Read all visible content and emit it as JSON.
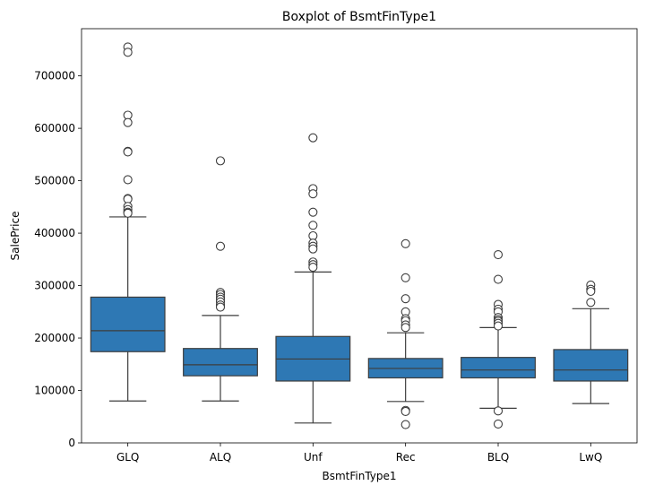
{
  "chart_data": {
    "type": "box",
    "title": "Boxplot of BsmtFinType1",
    "xlabel": "BsmtFinType1",
    "ylabel": "SalePrice",
    "ylim": [
      0,
      790000
    ],
    "yticks": [
      0,
      100000,
      200000,
      300000,
      400000,
      500000,
      600000,
      700000
    ],
    "ytick_labels": [
      "0",
      "100000",
      "200000",
      "300000",
      "400000",
      "500000",
      "600000",
      "700000"
    ],
    "grid": false,
    "colors": {
      "box_fill": "#2e78b4",
      "line": "#3d3d3d",
      "outlier_fill": "#ffffff"
    },
    "categories": [
      "GLQ",
      "ALQ",
      "Unf",
      "Rec",
      "BLQ",
      "LwQ"
    ],
    "boxes": [
      {
        "category": "GLQ",
        "whisker_low": 80000,
        "q1": 174000,
        "median": 214000,
        "q3": 278000,
        "whisker_high": 431000,
        "outliers": [
          755000,
          745000,
          625000,
          611000,
          556000,
          555000,
          502000,
          466000,
          465000,
          451000,
          445000,
          440000,
          438000
        ]
      },
      {
        "category": "ALQ",
        "whisker_low": 80000,
        "q1": 128000,
        "median": 149000,
        "q3": 180000,
        "whisker_high": 243000,
        "outliers": [
          538000,
          375000,
          287000,
          283000,
          278000,
          274000,
          269000,
          263000,
          259000
        ]
      },
      {
        "category": "Unf",
        "whisker_low": 37900,
        "q1": 118000,
        "median": 160000,
        "q3": 203000,
        "whisker_high": 326000,
        "outliers": [
          582000,
          485000,
          475000,
          440000,
          415000,
          395000,
          381000,
          375000,
          370000,
          345000,
          340000,
          335000
        ]
      },
      {
        "category": "Rec",
        "whisker_low": 79000,
        "q1": 124000,
        "median": 142000,
        "q3": 161000,
        "whisker_high": 210000,
        "outliers": [
          380000,
          315000,
          275000,
          250000,
          237000,
          233000,
          225000,
          220000,
          62000,
          60000,
          35000
        ]
      },
      {
        "category": "BLQ",
        "whisker_low": 66000,
        "q1": 124000,
        "median": 139000,
        "q3": 163000,
        "whisker_high": 220000,
        "outliers": [
          359000,
          312000,
          264000,
          255000,
          250000,
          239000,
          235000,
          232000,
          228000,
          223000,
          61000,
          36000
        ]
      },
      {
        "category": "LwQ",
        "whisker_low": 75000,
        "q1": 118000,
        "median": 139000,
        "q3": 178000,
        "whisker_high": 256000,
        "outliers": [
          301000,
          293000,
          289000,
          268000
        ]
      }
    ]
  }
}
